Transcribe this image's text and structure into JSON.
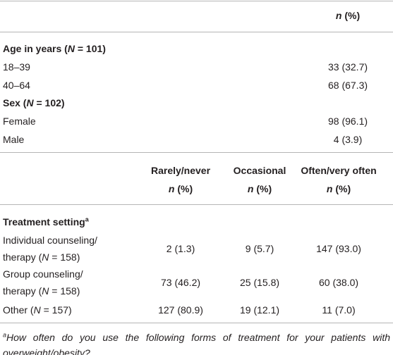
{
  "table1": {
    "header": {
      "var": "n",
      "rest": " (%)"
    },
    "sections": [
      {
        "label": {
          "pre": "Age in years (",
          "var": "N",
          "post": " = 101)"
        },
        "rows": [
          [
            "18–39",
            "33 (32.7)"
          ],
          [
            "40–64",
            "68 (67.3)"
          ]
        ]
      },
      {
        "label": {
          "pre": "Sex (",
          "var": "N",
          "post": " = 102)"
        },
        "rows": [
          [
            "Female",
            "98 (96.1)"
          ],
          [
            "Male",
            "4 (3.9)"
          ]
        ]
      }
    ]
  },
  "table2": {
    "columns": [
      {
        "title": "Rarely/never",
        "var": "n",
        "rest": " (%)"
      },
      {
        "title": "Occasional",
        "var": "n",
        "rest": " (%)"
      },
      {
        "title": "Often/very often",
        "var": "n",
        "rest": " (%)"
      }
    ],
    "section": {
      "label": "Treatment setting",
      "sup": "a"
    },
    "rows": [
      {
        "line1": "Individual counseling/",
        "pre": "therapy (",
        "var": "N",
        "post": " = 158)",
        "values": [
          "2 (1.3)",
          "9 (5.7)",
          "147 (93.0)"
        ]
      },
      {
        "line1": "Group counseling/",
        "pre": "therapy (",
        "var": "N",
        "post": " = 158)",
        "values": [
          "73 (46.2)",
          "25 (15.8)",
          "60 (38.0)"
        ]
      },
      {
        "pre": "Other (",
        "var": "N",
        "post": " = 157)",
        "values": [
          "127 (80.9)",
          "19 (12.1)",
          "11 (7.0)"
        ]
      }
    ]
  },
  "footnote": {
    "sup": "a",
    "text": "How often do you use the following forms of treatment for your patients with overweight/obesity?"
  }
}
